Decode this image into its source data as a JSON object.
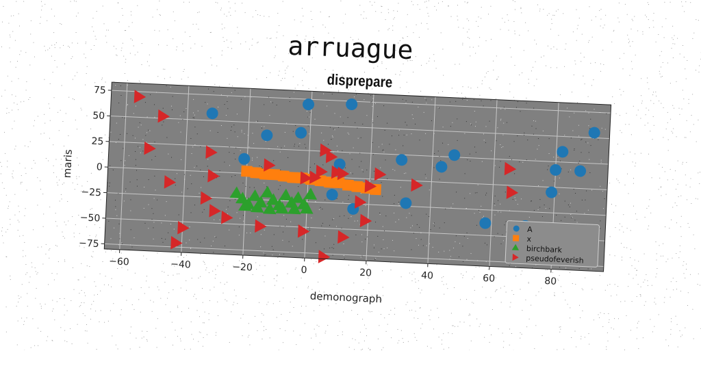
{
  "figure": {
    "main_title": "arruague"
  },
  "chart_data": {
    "type": "scatter",
    "title": "disprepare",
    "xlabel": "demonograph",
    "ylabel": "maris",
    "xlim": [
      -65,
      97
    ],
    "ylim": [
      -80,
      83
    ],
    "xticks": [
      -60,
      -40,
      -20,
      0,
      20,
      40,
      60,
      80
    ],
    "yticks": [
      75,
      50,
      25,
      0,
      -25,
      -50,
      -75
    ],
    "grid": true,
    "background": "#808080",
    "legend_position": "lower-right",
    "series": [
      {
        "name": "A",
        "marker": "circle",
        "color": "#1f77b4",
        "points": [
          [
            -32,
            57
          ],
          [
            -14,
            38
          ],
          [
            -3,
            42
          ],
          [
            -1,
            70
          ],
          [
            13,
            72
          ],
          [
            -21,
            14
          ],
          [
            10,
            13
          ],
          [
            8,
            -17
          ],
          [
            15,
            -30
          ],
          [
            30,
            20
          ],
          [
            32,
            -22
          ],
          [
            43,
            15
          ],
          [
            47,
            27
          ],
          [
            58,
            -38
          ],
          [
            71,
            -39
          ],
          [
            79,
            -5
          ],
          [
            80,
            17
          ],
          [
            82,
            35
          ],
          [
            88,
            17
          ],
          [
            92,
            55
          ]
        ]
      },
      {
        "name": "x",
        "marker": "square",
        "color": "#ff7f0e",
        "points": [
          [
            -20,
            2
          ],
          [
            -17,
            1
          ],
          [
            -14,
            0
          ],
          [
            -11,
            0
          ],
          [
            -8,
            -1
          ],
          [
            -5,
            -2
          ],
          [
            -2,
            -2
          ],
          [
            1,
            -3
          ],
          [
            4,
            -4
          ],
          [
            7,
            -5
          ],
          [
            10,
            -5
          ],
          [
            13,
            -7
          ],
          [
            16,
            -8
          ],
          [
            19,
            -9
          ],
          [
            22,
            -10
          ]
        ]
      },
      {
        "name": "birchbark",
        "marker": "triangle-up",
        "color": "#2ca02c",
        "points": [
          [
            -23,
            -20
          ],
          [
            -21,
            -25
          ],
          [
            -19,
            -30
          ],
          [
            -17,
            -22
          ],
          [
            -15,
            -28
          ],
          [
            -13,
            -18
          ],
          [
            -11,
            -25
          ],
          [
            -9,
            -30
          ],
          [
            -7,
            -20
          ],
          [
            -5,
            -27
          ],
          [
            -3,
            -22
          ],
          [
            -1,
            -28
          ],
          [
            1,
            -18
          ],
          [
            -20,
            -32
          ],
          [
            -16,
            -33
          ],
          [
            -12,
            -34
          ],
          [
            -8,
            -33
          ],
          [
            -4,
            -33
          ],
          [
            0,
            -32
          ]
        ]
      },
      {
        "name": "pseudofeverish",
        "marker": "triangle-right",
        "color": "#d62728",
        "points": [
          [
            -56,
            70
          ],
          [
            -48,
            52
          ],
          [
            -52,
            20
          ],
          [
            -32,
            19
          ],
          [
            -31,
            -4
          ],
          [
            -45,
            -12
          ],
          [
            -33,
            -26
          ],
          [
            -30,
            -38
          ],
          [
            -26,
            -44
          ],
          [
            -15,
            -51
          ],
          [
            -13,
            9
          ],
          [
            -1,
            -2
          ],
          [
            2,
            -1
          ],
          [
            4,
            5
          ],
          [
            5,
            26
          ],
          [
            7,
            20
          ],
          [
            9,
            5
          ],
          [
            11,
            4
          ],
          [
            20,
            -7
          ],
          [
            23,
            5
          ],
          [
            35,
            -4
          ],
          [
            65,
            16
          ],
          [
            66,
            -7
          ],
          [
            -40,
            -56
          ],
          [
            -42,
            -71
          ],
          [
            -1,
            -54
          ],
          [
            12,
            -58
          ],
          [
            19,
            -41
          ],
          [
            17,
            -23
          ],
          [
            6,
            -78
          ]
        ]
      }
    ]
  }
}
